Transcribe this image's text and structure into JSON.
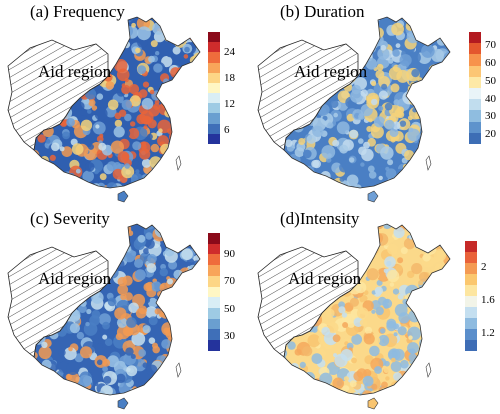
{
  "panels": [
    {
      "id": "frequency",
      "title": "(a) Frequency",
      "region_label": "Aid region",
      "colorbar": {
        "colors": [
          "#8b0a1a",
          "#cf2c2c",
          "#ef6c3c",
          "#f8a55a",
          "#fdd686",
          "#fff7c4",
          "#d9eef5",
          "#9ecbe4",
          "#6a9fd0",
          "#3f6fb8",
          "#24339c"
        ],
        "ticks": [
          "24",
          "18",
          "12",
          "6"
        ]
      },
      "palette": [
        "#2f5fb0",
        "#4a7fc4",
        "#6f9fd6",
        "#9cc4e6",
        "#c8e0ef",
        "#f4d27a",
        "#f29a52",
        "#e8643a"
      ]
    },
    {
      "id": "duration",
      "title": "(b) Duration",
      "region_label": "Aid region",
      "colorbar": {
        "colors": [
          "#b31a20",
          "#e4572e",
          "#f7934c",
          "#fcc674",
          "#fde9a6",
          "#e9f4f8",
          "#c1ddee",
          "#8fbde0",
          "#5e93cc",
          "#3d6eb5"
        ],
        "ticks": [
          "70",
          "60",
          "50",
          "40",
          "30",
          "20"
        ]
      },
      "palette": [
        "#4a7fc4",
        "#6f9fd6",
        "#8fb8e0",
        "#a9cbe8",
        "#c3dcef",
        "#f4d27a"
      ]
    },
    {
      "id": "severity",
      "title": "(c) Severity",
      "region_label": "Aid region",
      "colorbar": {
        "colors": [
          "#8b0a1a",
          "#cf2c2c",
          "#ef6c3c",
          "#f8a55a",
          "#fdd686",
          "#fff7c4",
          "#d9eef5",
          "#9ecbe4",
          "#6a9fd0",
          "#3f6fb8",
          "#24339c"
        ],
        "ticks": [
          "90",
          "70",
          "50",
          "30"
        ]
      },
      "palette": [
        "#3565b4",
        "#4a7fc4",
        "#6f9fd6",
        "#9cc4e6",
        "#c8e0ef",
        "#f29a52"
      ]
    },
    {
      "id": "intensity",
      "title": "(d)Intensity",
      "region_label": "Aid region",
      "colorbar": {
        "colors": [
          "#c62a28",
          "#e9623a",
          "#f49a53",
          "#fbc76e",
          "#fde6a0",
          "#f2f4e8",
          "#c4dff0",
          "#8ebbe0",
          "#5a8ecb",
          "#3e6db5"
        ],
        "ticks": [
          "2",
          "1.6",
          "1.2"
        ]
      },
      "palette": [
        "#fbd98a",
        "#f8c470",
        "#f5a85c",
        "#f3b76a",
        "#fde6a0",
        "#c4dff0",
        "#8ebbe0"
      ]
    }
  ]
}
